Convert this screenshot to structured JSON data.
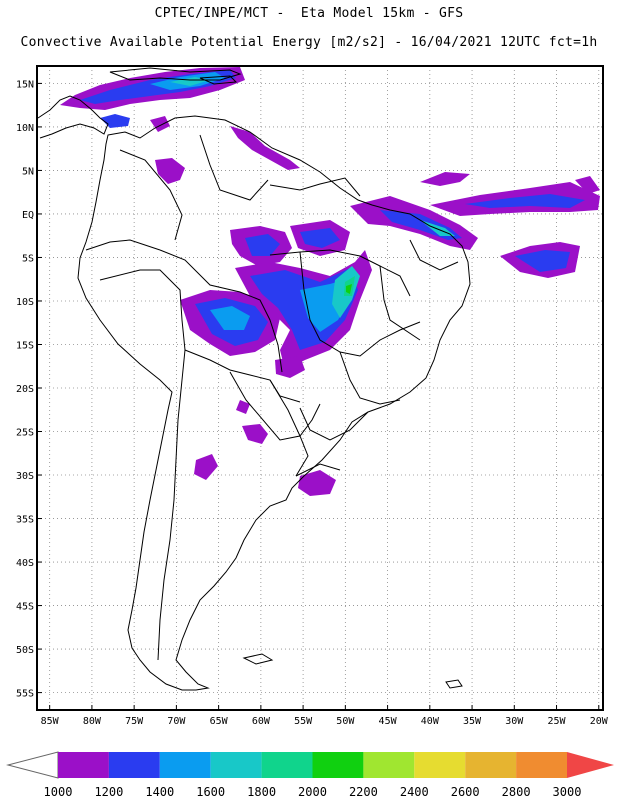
{
  "header": {
    "line1": "CPTEC/INPE/MCT -  Eta Model 15km - GFS",
    "line2": "Convective Available Potential Energy [m2/s2] - 16/04/2021 12UTC fct=1h"
  },
  "map": {
    "lat_labels": [
      "15N",
      "10N",
      "5N",
      "EQ",
      "5S",
      "10S",
      "15S",
      "20S",
      "25S",
      "30S",
      "35S",
      "40S",
      "45S",
      "50S",
      "55S"
    ],
    "lat_values": [
      15,
      10,
      5,
      0,
      -5,
      -10,
      -15,
      -20,
      -25,
      -30,
      -35,
      -40,
      -45,
      -50,
      -55
    ],
    "lon_labels": [
      "85W",
      "80W",
      "75W",
      "70W",
      "65W",
      "60W",
      "55W",
      "50W",
      "45W",
      "40W",
      "35W",
      "30W",
      "25W",
      "20W"
    ],
    "lon_values": [
      -85,
      -80,
      -75,
      -70,
      -65,
      -60,
      -55,
      -50,
      -45,
      -40,
      -35,
      -30,
      -25,
      -20
    ],
    "grid": true,
    "extent": {
      "lon": [
        -86.5,
        -19.5
      ],
      "lat": [
        -57,
        17
      ]
    }
  },
  "colorbar": {
    "labels": [
      "1000",
      "1200",
      "1400",
      "1600",
      "1800",
      "2000",
      "2200",
      "2400",
      "2600",
      "2800",
      "3000"
    ],
    "colors": [
      "#9b10c8",
      "#2a3cf0",
      "#0a9cf0",
      "#18c8c8",
      "#10d48c",
      "#10d010",
      "#a0e630",
      "#e6dc30",
      "#e6b430",
      "#f08c30",
      "#f04646"
    ],
    "under_color": "#ffffff",
    "over_color": "#f04646"
  },
  "cape_colors": {
    "c1000": "#9b10c8",
    "c1200": "#2a3cf0",
    "c1400": "#0a9cf0",
    "c1600": "#18c8c8",
    "c1800": "#10d48c",
    "c2000": "#10d010"
  }
}
